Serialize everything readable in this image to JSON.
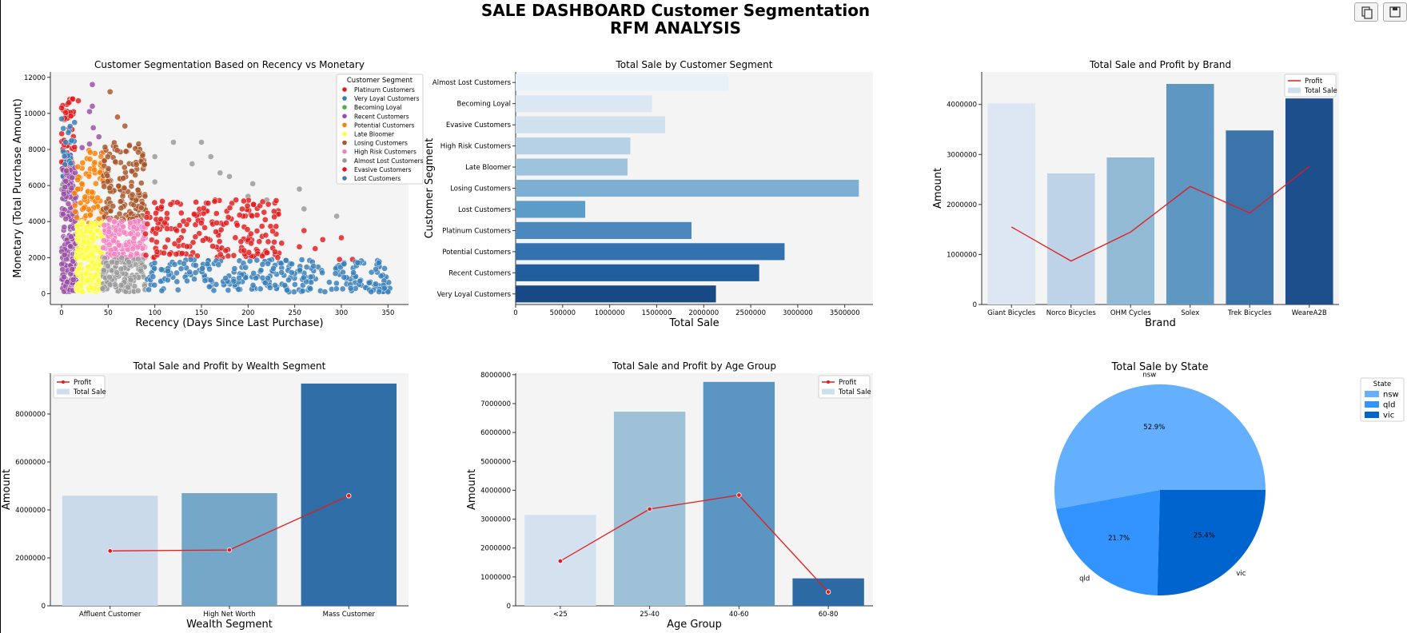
{
  "dashboard": {
    "title_line1": "SALE DASHBOARD Customer Segmentation",
    "title_line2": "RFM ANALYSIS"
  },
  "toolbar": [
    {
      "name": "copy-icon"
    },
    {
      "name": "save-icon"
    }
  ],
  "colors": {
    "plot_bg": "#f4f4f4",
    "profit_line": "#e41a1c",
    "pie": [
      "#64b0ff",
      "#3494ff",
      "#0064cf"
    ]
  },
  "chart_data": [
    {
      "type": "scatter",
      "title": "Customer Segmentation Based on Recency vs Monetary",
      "xlabel": "Recency (Days Since Last Purchase)",
      "ylabel": "Monetary (Total Purchase Amount)",
      "xlim": [
        -12,
        372
      ],
      "ylim": [
        -600,
        12300
      ],
      "xticks": [
        0,
        50,
        100,
        150,
        200,
        250,
        300,
        350
      ],
      "yticks": [
        0,
        2000,
        4000,
        6000,
        8000,
        10000,
        12000
      ],
      "legend": {
        "title": "Customer Segment",
        "position": "top-right"
      },
      "series": [
        {
          "name": "Platinum Customers",
          "color": "#e41a1c",
          "region": {
            "x": [
              0,
              14
            ],
            "y": [
              6000,
              10800
            ]
          },
          "count": 60,
          "extra": [
            [
              0,
              10300
            ],
            [
              8,
              10600
            ],
            [
              12,
              10800
            ],
            [
              18,
              10700
            ]
          ]
        },
        {
          "name": "Very Loyal Customers",
          "color": "#377eb8",
          "region": {
            "x": [
              0,
              14
            ],
            "y": [
              6200,
              9600
            ]
          },
          "count": 25,
          "extra": [
            [
              0,
              9700
            ],
            [
              14,
              9500
            ]
          ]
        },
        {
          "name": "Becoming Loyal",
          "color": "#4daf4a",
          "region": {
            "x": [
              0,
              14
            ],
            "y": [
              5000,
              6200
            ]
          },
          "count": 10,
          "extra": []
        },
        {
          "name": "Recent Customers",
          "color": "#984ea3",
          "region": {
            "x": [
              0,
              16
            ],
            "y": [
              100,
              7000
            ]
          },
          "count": 190,
          "extra": [
            [
              30,
              8300
            ],
            [
              34,
              9200
            ],
            [
              30,
              10100
            ],
            [
              33,
              10400
            ],
            [
              40,
              8700
            ],
            [
              43,
              7800
            ],
            [
              22,
              8100
            ],
            [
              33,
              11600
            ]
          ]
        },
        {
          "name": "Potential Customers",
          "color": "#ff7f00",
          "region": {
            "x": [
              14,
              45
            ],
            "y": [
              3800,
              8000
            ]
          },
          "count": 80,
          "extra": []
        },
        {
          "name": "Late Bloomer",
          "color": "#ffff33",
          "region": {
            "x": [
              16,
              44
            ],
            "y": [
              100,
              4100
            ]
          },
          "count": 190,
          "extra": []
        },
        {
          "name": "Losing Customers",
          "color": "#a65628",
          "region": {
            "x": [
              44,
              90
            ],
            "y": [
              4100,
              8400
            ]
          },
          "count": 150,
          "extra": [
            [
              52,
              11200
            ],
            [
              68,
              9300
            ],
            [
              60,
              9800
            ]
          ]
        },
        {
          "name": "High Risk Customers",
          "color": "#f781bf",
          "region": {
            "x": [
              44,
              90
            ],
            "y": [
              2000,
              4100
            ]
          },
          "count": 150,
          "extra": []
        },
        {
          "name": "Almost Lost Customers",
          "color": "#999999",
          "region": {
            "x": [
              44,
              90
            ],
            "y": [
              100,
              2000
            ]
          },
          "count": 130,
          "extra": [
            [
              100,
              6200
            ],
            [
              120,
              8400
            ],
            [
              150,
              8400
            ],
            [
              160,
              7600
            ],
            [
              140,
              7200
            ],
            [
              170,
              6700
            ],
            [
              200,
              5400
            ],
            [
              260,
              4700
            ],
            [
              220,
              5200
            ],
            [
              255,
              5800
            ],
            [
              295,
              4300
            ],
            [
              180,
              6500
            ],
            [
              205,
              6100
            ],
            [
              100,
              7600
            ]
          ]
        },
        {
          "name": "Evasive Customers",
          "color": "#e41a1c",
          "region": {
            "x": [
              90,
              235
            ],
            "y": [
              2000,
              5200
            ]
          },
          "count": 200,
          "extra": [
            [
              260,
              3500
            ],
            [
              280,
              3000
            ],
            [
              300,
              3100
            ],
            [
              298,
              1900
            ],
            [
              272,
              2500
            ],
            [
              236,
              2800
            ],
            [
              255,
              2600
            ],
            [
              312,
              1900
            ]
          ]
        },
        {
          "name": "Lost Customers",
          "color": "#377eb8",
          "region": {
            "x": [
              90,
              352
            ],
            "y": [
              100,
              1900
            ]
          },
          "count": 280,
          "extra": [
            [
              350,
              100
            ],
            [
              340,
              1700
            ],
            [
              320,
              700
            ],
            [
              330,
              600
            ],
            [
              346,
              300
            ],
            [
              310,
              300
            ]
          ]
        }
      ]
    },
    {
      "type": "bar",
      "orientation": "horizontal",
      "title": "Total Sale by Customer Segment",
      "xlabel": "Total Sale",
      "ylabel": "Customer Segment",
      "xlim": [
        0,
        3800000
      ],
      "xticks": [
        0,
        500000,
        1000000,
        1500000,
        2000000,
        2500000,
        3000000,
        3500000
      ],
      "categories": [
        "Almost Lost Customers",
        "Becoming Loyal",
        "Evasive Customers",
        "High Risk Customers",
        "Late Bloomer",
        "Losing Customers",
        "Lost Customers",
        "Platinum Customers",
        "Potential Customers",
        "Recent Customers",
        "Very Loyal Customers"
      ],
      "values": [
        2260000,
        1450000,
        1590000,
        1220000,
        1190000,
        3650000,
        740000,
        1870000,
        2860000,
        2590000,
        2130000
      ],
      "colors": [
        "#e8f0f8",
        "#dbe7f3",
        "#cfe0ef",
        "#b6d1e6",
        "#9ec3dc",
        "#7dafd2",
        "#5c9cc9",
        "#4a88bd",
        "#3372ae",
        "#215e9d",
        "#174a85"
      ]
    },
    {
      "type": "bar",
      "title": "Total Sale and Profit by Brand",
      "xlabel": "Brand",
      "ylabel": "Amount",
      "ylim": [
        0,
        4650000
      ],
      "yticks": [
        0,
        1000000,
        2000000,
        3000000,
        4000000
      ],
      "legend": {
        "entries": [
          "Profit",
          "Total Sale"
        ],
        "position": "top-right"
      },
      "categories": [
        "Giant Bicycles",
        "Norco Bicycles",
        "OHM Cycles",
        "Solex",
        "Trek Bicycles",
        "WeareA2B"
      ],
      "series": [
        {
          "name": "Total Sale",
          "values": [
            4020000,
            2620000,
            2940000,
            4410000,
            3480000,
            4120000
          ]
        },
        {
          "name": "Profit",
          "values": [
            1550000,
            870000,
            1450000,
            2360000,
            1830000,
            2760000
          ]
        }
      ],
      "bar_colors": [
        "#dde7f3",
        "#bed3e7",
        "#93bad5",
        "#5e97c2",
        "#3a74ab",
        "#1d4f8c"
      ]
    },
    {
      "type": "bar",
      "title": "Total Sale and Profit by Wealth Segment",
      "xlabel": "Wealth Segment",
      "ylabel": "Amount",
      "ylim": [
        0,
        9700000
      ],
      "yticks": [
        0,
        2000000,
        4000000,
        6000000,
        8000000
      ],
      "legend": {
        "entries": [
          "Profit",
          "Total Sale"
        ],
        "position": "top-left"
      },
      "categories": [
        "Affluent Customer",
        "High Net Worth",
        "Mass Customer"
      ],
      "series": [
        {
          "name": "Total Sale",
          "values": [
            4590000,
            4700000,
            9270000
          ]
        },
        {
          "name": "Profit",
          "values": [
            2290000,
            2330000,
            4590000
          ]
        }
      ],
      "bar_colors": [
        "#cbdaea",
        "#75a7c9",
        "#2f6ea6"
      ]
    },
    {
      "type": "bar",
      "title": "Total Sale and Profit by Age Group",
      "xlabel": "Age Group",
      "ylabel": "Amount",
      "ylim": [
        0,
        8050000
      ],
      "yticks": [
        0,
        1000000,
        2000000,
        3000000,
        4000000,
        5000000,
        6000000,
        7000000,
        8000000
      ],
      "legend": {
        "entries": [
          "Profit",
          "Total Sale"
        ],
        "position": "top-right"
      },
      "categories": [
        "<25",
        "25-40",
        "40-60",
        "60-80"
      ],
      "series": [
        {
          "name": "Total Sale",
          "values": [
            3150000,
            6720000,
            7750000,
            950000
          ]
        },
        {
          "name": "Profit",
          "values": [
            1550000,
            3350000,
            3830000,
            480000
          ]
        }
      ],
      "bar_colors": [
        "#d4e2ef",
        "#9ec1d8",
        "#5a96c1",
        "#2c6aa4"
      ]
    },
    {
      "type": "pie",
      "title": "Total Sale by State",
      "legend": {
        "title": "State",
        "position": "right"
      },
      "categories": [
        "nsw",
        "qld",
        "vic"
      ],
      "values": [
        52.9,
        21.7,
        25.4
      ],
      "labels": [
        "52.9%",
        "21.7%",
        "25.4%"
      ]
    }
  ]
}
